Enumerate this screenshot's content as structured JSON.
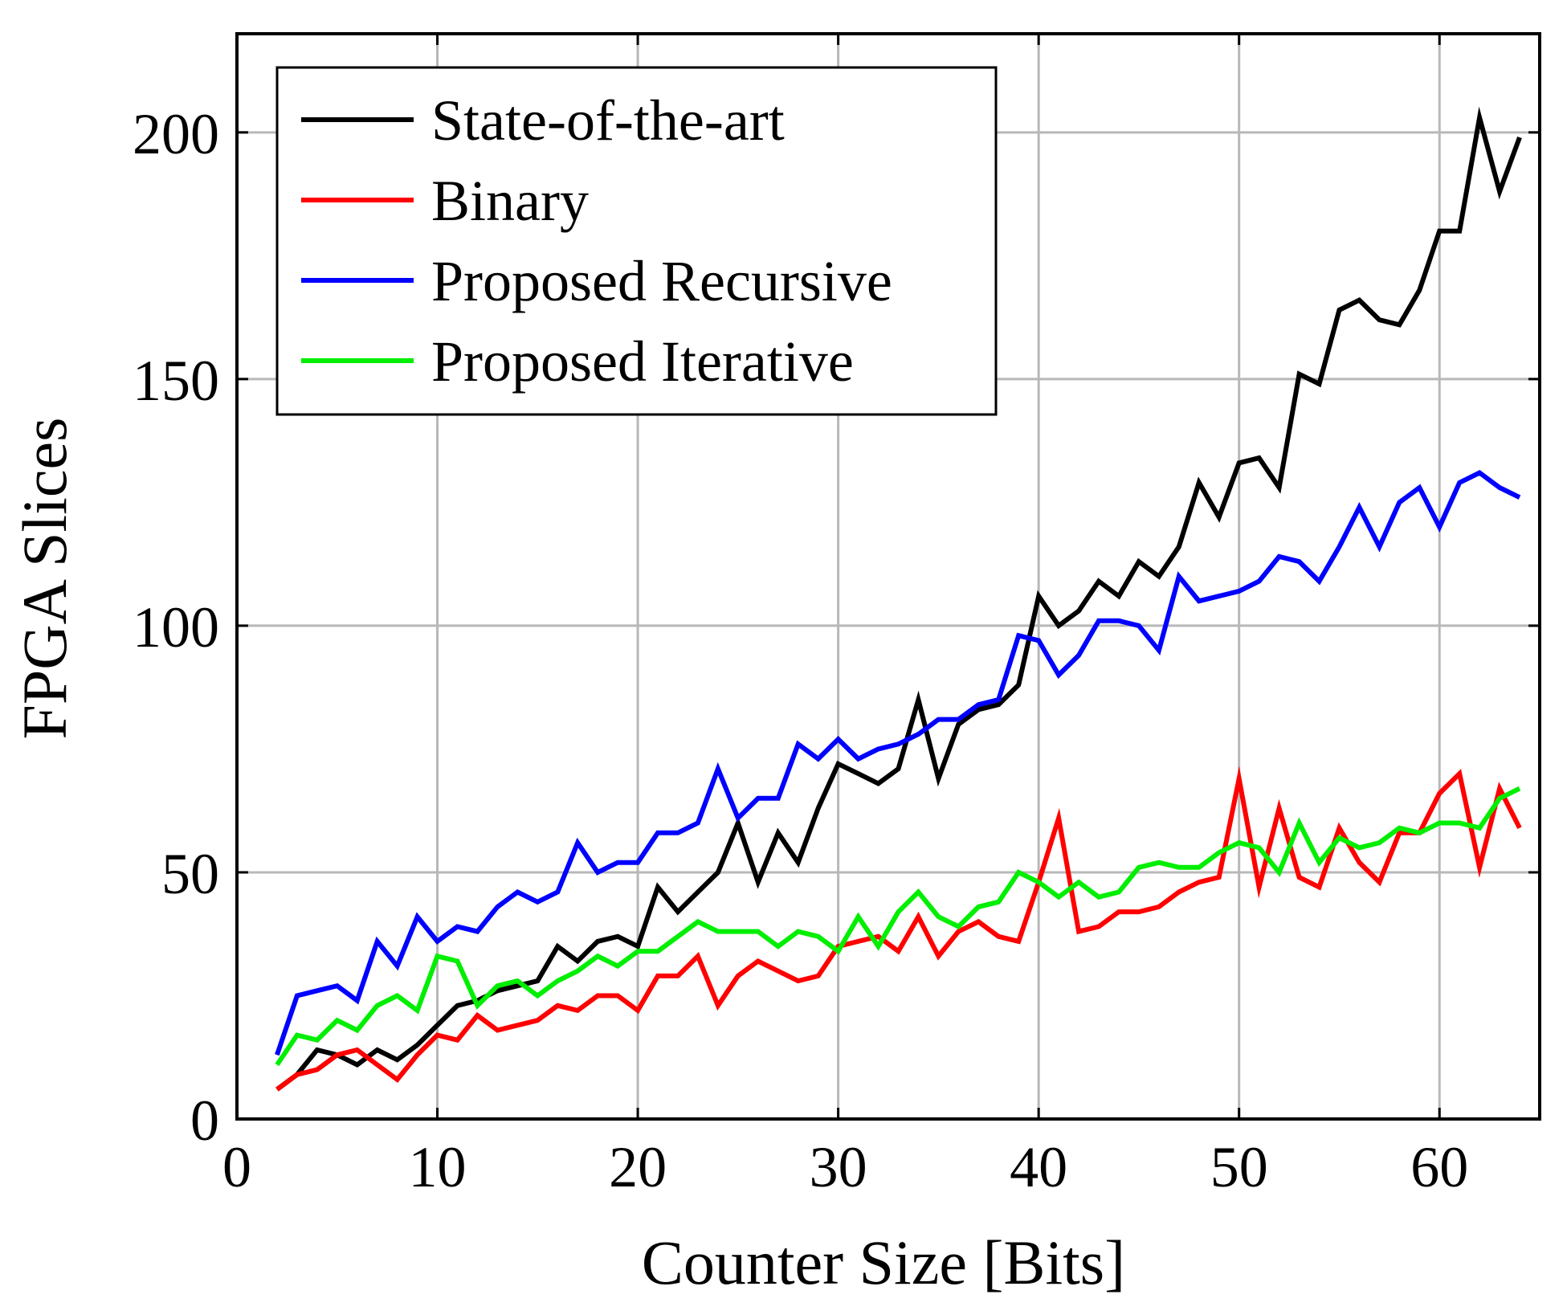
{
  "chart_data": {
    "type": "line",
    "title": "",
    "xlabel": "Counter Size [Bits]",
    "ylabel": "FPGA Slices",
    "xlim": [
      0,
      65
    ],
    "ylim": [
      0,
      220
    ],
    "xticks": [
      0,
      10,
      20,
      30,
      40,
      50,
      60
    ],
    "yticks": [
      0,
      50,
      100,
      150,
      200
    ],
    "grid": true,
    "legend_position": "top-left",
    "x": [
      2,
      3,
      4,
      5,
      6,
      7,
      8,
      9,
      10,
      11,
      12,
      13,
      14,
      15,
      16,
      17,
      18,
      19,
      20,
      21,
      22,
      23,
      24,
      25,
      26,
      27,
      28,
      29,
      30,
      31,
      32,
      33,
      34,
      35,
      36,
      37,
      38,
      39,
      40,
      41,
      42,
      43,
      44,
      45,
      46,
      47,
      48,
      49,
      50,
      51,
      52,
      53,
      54,
      55,
      56,
      57,
      58,
      59,
      60,
      61,
      62,
      63,
      64
    ],
    "series": [
      {
        "name": "State-of-the-art",
        "color": "#000000",
        "values": [
          6,
          9,
          14,
          13,
          11,
          14,
          12,
          15,
          19,
          23,
          24,
          26,
          27,
          28,
          35,
          32,
          36,
          37,
          35,
          47,
          42,
          46,
          50,
          60,
          48,
          58,
          52,
          63,
          72,
          70,
          68,
          71,
          85,
          69,
          80,
          83,
          84,
          88,
          106,
          100,
          103,
          109,
          106,
          113,
          110,
          116,
          129,
          122,
          133,
          134,
          128,
          151,
          149,
          164,
          166,
          162,
          161,
          168,
          180,
          180,
          203,
          188,
          199
        ]
      },
      {
        "name": "Binary",
        "color": "#ff0000",
        "values": [
          6,
          9,
          10,
          13,
          14,
          11,
          8,
          13,
          17,
          16,
          21,
          18,
          19,
          20,
          23,
          22,
          25,
          25,
          22,
          29,
          29,
          33,
          23,
          29,
          32,
          30,
          28,
          29,
          35,
          36,
          37,
          34,
          41,
          33,
          38,
          40,
          37,
          36,
          48,
          61,
          38,
          39,
          42,
          42,
          43,
          46,
          48,
          49,
          69,
          47,
          63,
          49,
          47,
          59,
          52,
          48,
          58,
          58,
          66,
          70,
          51,
          67,
          59
        ]
      },
      {
        "name": "Proposed Recursive",
        "color": "#0000ff",
        "values": [
          13,
          25,
          26,
          27,
          24,
          36,
          31,
          41,
          36,
          39,
          38,
          43,
          46,
          44,
          46,
          56,
          50,
          52,
          52,
          58,
          58,
          60,
          71,
          61,
          65,
          65,
          76,
          73,
          77,
          73,
          75,
          76,
          78,
          81,
          81,
          84,
          85,
          98,
          97,
          90,
          94,
          101,
          101,
          100,
          95,
          110,
          105,
          106,
          107,
          109,
          114,
          113,
          109,
          116,
          124,
          116,
          125,
          128,
          120,
          129,
          131,
          128,
          126
        ]
      },
      {
        "name": "Proposed Iterative",
        "color": "#00ee00",
        "values": [
          11,
          17,
          16,
          20,
          18,
          23,
          25,
          22,
          33,
          32,
          23,
          27,
          28,
          25,
          28,
          30,
          33,
          31,
          34,
          34,
          37,
          40,
          38,
          38,
          38,
          35,
          38,
          37,
          34,
          41,
          35,
          42,
          46,
          41,
          39,
          43,
          44,
          50,
          48,
          45,
          48,
          45,
          46,
          51,
          52,
          51,
          51,
          54,
          56,
          55,
          50,
          60,
          52,
          57,
          55,
          56,
          59,
          58,
          60,
          60,
          59,
          65,
          67
        ]
      }
    ]
  }
}
